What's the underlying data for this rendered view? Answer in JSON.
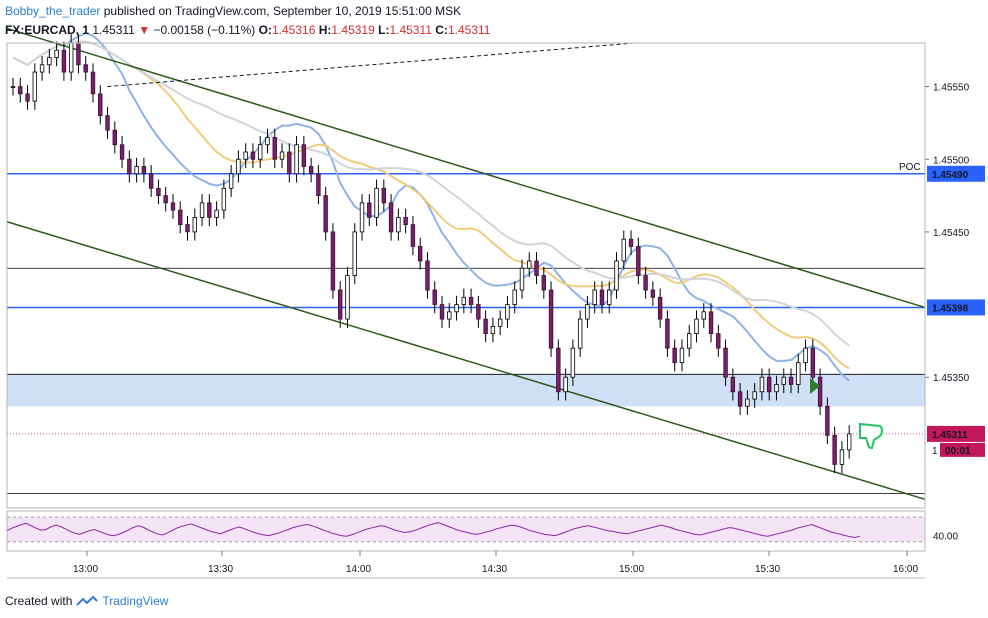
{
  "header": {
    "author": "Bobby_the_trader",
    "published": "published on TradingView.com, September 10, 2019 15:51:00 MSK",
    "symbol": "FX:EURCAD, 1",
    "last": "1.45311",
    "down_arrow": "▼",
    "change": "−0.00158 (−0.11%)",
    "o_label": "O:",
    "o_value": "1.45316",
    "h_label": "H:",
    "h_value": "1.45319",
    "l_label": "L:",
    "l_value": "1.45311",
    "c_label": "C:",
    "c_value": "1.45311"
  },
  "footer": {
    "created_with": "Created with",
    "brand": "TradingView"
  },
  "chart_data": {
    "type": "candlestick",
    "symbol": "FX:EURCAD",
    "interval": "1",
    "x_ticks": [
      "13:00",
      "13:30",
      "14:00",
      "14:30",
      "15:00",
      "15:30",
      "16:00"
    ],
    "y_ticks": [
      "1.45550",
      "1.45500",
      "1.45450",
      "1.45350"
    ],
    "ylim": [
      1.4526,
      1.4558
    ],
    "price_labels": [
      {
        "text": "1.45490",
        "value": 1.4549,
        "color": "#2962ff"
      },
      {
        "text": "1.45398",
        "value": 1.45398,
        "color": "#2962ff"
      },
      {
        "text": "1.45311",
        "value": 1.45311,
        "color": "#c2185b"
      }
    ],
    "poc_label": "POC",
    "countdown": "00:01",
    "one_label": "1",
    "horizontal_lines": [
      {
        "value": 1.4549,
        "color": "#2962ff"
      },
      {
        "value": 1.45398,
        "color": "#2962ff"
      },
      {
        "value": 1.45425,
        "color": "#000000"
      },
      {
        "value": 1.45352,
        "color": "#000000"
      },
      {
        "value": 1.4527,
        "color": "#000000"
      }
    ],
    "zone": {
      "from": 1.4533,
      "to": 1.45352,
      "color": "#cfe0f7"
    },
    "channel_upper": {
      "from": [
        0,
        1.4559
      ],
      "to": [
        183,
        1.45398
      ]
    },
    "channel_lower": {
      "from": [
        0,
        1.45457
      ],
      "to": [
        183,
        1.45266
      ]
    },
    "dashed_line": {
      "from": [
        20,
        1.4555
      ],
      "to": [
        125,
        1.4558
      ]
    },
    "rsi": {
      "tick": "40.00",
      "band": [
        30,
        70
      ],
      "values": [
        48,
        52,
        55,
        58,
        60,
        56,
        52,
        49,
        50,
        54,
        57,
        55,
        51,
        47,
        44,
        42,
        45,
        48,
        50,
        47,
        44,
        41,
        40,
        42,
        45,
        49,
        53,
        56,
        54,
        50,
        46,
        43,
        41,
        44,
        48,
        52,
        55,
        57,
        59,
        56,
        53,
        50,
        47,
        45,
        43,
        46,
        49,
        52,
        54,
        51,
        48,
        45,
        43,
        41,
        40,
        42,
        44,
        47,
        50,
        53,
        55,
        57,
        58,
        56,
        53,
        50,
        47,
        44,
        42,
        40,
        39,
        41,
        44,
        47,
        50,
        52,
        54,
        56,
        55,
        52,
        49,
        47,
        45,
        46,
        48,
        51,
        54,
        57,
        59,
        61,
        58,
        55,
        52,
        49,
        47,
        45,
        43,
        42,
        44,
        46,
        48,
        51,
        53,
        55,
        57,
        56,
        54,
        51,
        48,
        46,
        44,
        42,
        41,
        40,
        42,
        45,
        48,
        51,
        53,
        55,
        56,
        54,
        52,
        50,
        48,
        47,
        45,
        44,
        43,
        45,
        47,
        49,
        51,
        53,
        55,
        57,
        55,
        53,
        50,
        48,
        46,
        44,
        42,
        41,
        43,
        45,
        47,
        49,
        51,
        53,
        52,
        50,
        48,
        46,
        44,
        42,
        40,
        39,
        41,
        43,
        45,
        47,
        49,
        52,
        54,
        56,
        58,
        55,
        52,
        49,
        46,
        44,
        42,
        40,
        38,
        37,
        39
      ]
    },
    "close_values": [
      1.4555,
      1.45545,
      1.4554,
      1.4556,
      1.45565,
      1.4557,
      1.45575,
      1.4556,
      1.4558,
      1.45565,
      1.4556,
      1.45545,
      1.4553,
      1.4552,
      1.4551,
      1.455,
      1.4549,
      1.45495,
      1.4549,
      1.4548,
      1.45475,
      1.4547,
      1.45465,
      1.45455,
      1.4545,
      1.4546,
      1.4547,
      1.4546,
      1.45465,
      1.4548,
      1.4549,
      1.455,
      1.45505,
      1.455,
      1.4551,
      1.45515,
      1.455,
      1.45505,
      1.4549,
      1.4551,
      1.45495,
      1.4549,
      1.45475,
      1.4545,
      1.4541,
      1.4539,
      1.4542,
      1.4545,
      1.4547,
      1.4546,
      1.4548,
      1.4547,
      1.4545,
      1.4546,
      1.45455,
      1.4544,
      1.4543,
      1.4541,
      1.454,
      1.4539,
      1.45395,
      1.454,
      1.45405,
      1.454,
      1.4539,
      1.4538,
      1.45385,
      1.4539,
      1.454,
      1.4541,
      1.45425,
      1.4543,
      1.4542,
      1.4541,
      1.4537,
      1.4534,
      1.4535,
      1.4537,
      1.4539,
      1.454,
      1.4541,
      1.454,
      1.4541,
      1.4543,
      1.45445,
      1.4544,
      1.4542,
      1.4541,
      1.45405,
      1.4539,
      1.4537,
      1.4536,
      1.4537,
      1.4538,
      1.4539,
      1.45395,
      1.4538,
      1.4537,
      1.4535,
      1.4534,
      1.4533,
      1.45335,
      1.4534,
      1.4535,
      1.4534,
      1.45345,
      1.4535,
      1.45345,
      1.4536,
      1.4537,
      1.4535,
      1.4533,
      1.4531,
      1.4529,
      1.453,
      1.45311
    ]
  }
}
